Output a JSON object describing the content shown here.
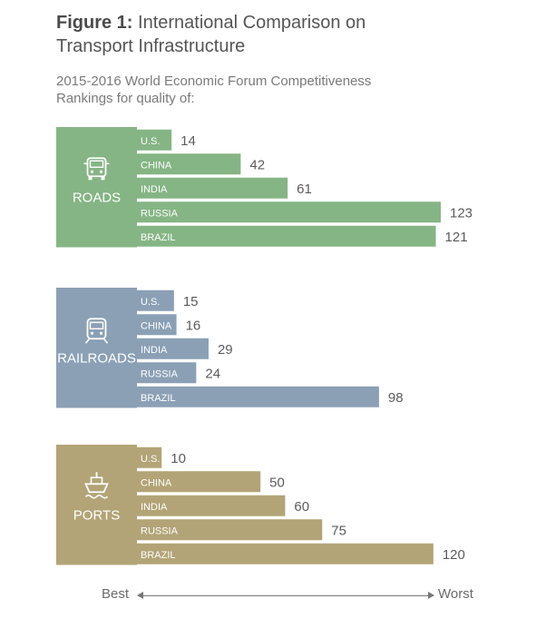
{
  "figure": {
    "label": "Figure 1:",
    "title_line1": "International Comparison on",
    "title_line2": "Transport Infrastructure",
    "subtitle_line1": "2015-2016 World Economic Forum Competitiveness",
    "subtitle_line2": "Rankings for quality of:"
  },
  "axis": {
    "best": "Best",
    "worst": "Worst"
  },
  "colors": {
    "roads": "#85b584",
    "railroads": "#8ba0b5",
    "ports": "#b2a476"
  },
  "chart_data": [
    {
      "type": "bar",
      "group": "ROADS",
      "icon": "truck-icon",
      "color": "#85b584",
      "categories": [
        "U.S.",
        "CHINA",
        "INDIA",
        "RUSSIA",
        "BRAZIL"
      ],
      "values": [
        14,
        42,
        61,
        123,
        121
      ]
    },
    {
      "type": "bar",
      "group": "RAILROADS",
      "icon": "train-icon",
      "color": "#8ba0b5",
      "categories": [
        "U.S.",
        "CHINA",
        "INDIA",
        "RUSSIA",
        "BRAZIL"
      ],
      "values": [
        15,
        16,
        29,
        24,
        98
      ]
    },
    {
      "type": "bar",
      "group": "PORTS",
      "icon": "ship-icon",
      "color": "#b2a476",
      "categories": [
        "U.S.",
        "CHINA",
        "INDIA",
        "RUSSIA",
        "BRAZIL"
      ],
      "values": [
        10,
        50,
        60,
        75,
        120
      ]
    }
  ]
}
